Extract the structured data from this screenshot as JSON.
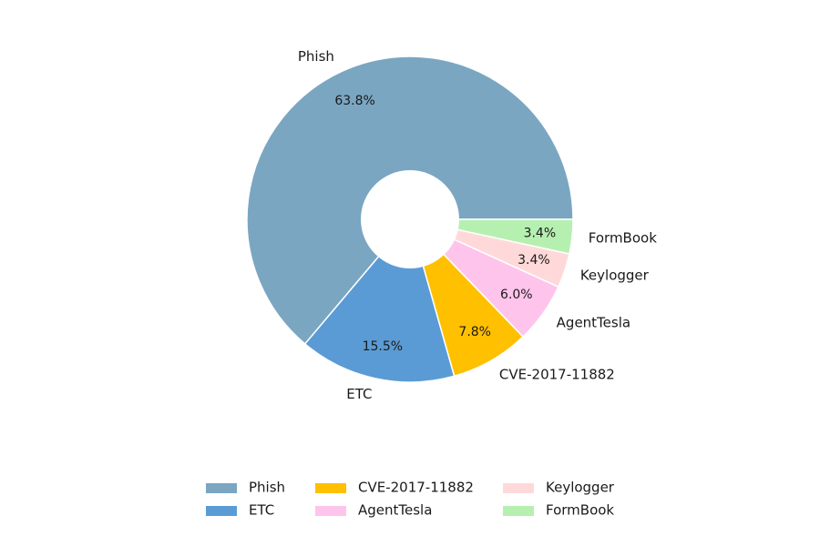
{
  "chart_data": {
    "type": "pie",
    "donut": true,
    "title": "",
    "categories": [
      "Phish",
      "ETC",
      "CVE-2017-11882",
      "AgentTesla",
      "Keylogger",
      "FormBook"
    ],
    "values": [
      63.8,
      15.5,
      7.8,
      6.0,
      3.4,
      3.4
    ],
    "value_labels": [
      "63.8%",
      "15.5%",
      "7.8%",
      "6.0%",
      "3.4%",
      "3.4%"
    ],
    "colors": [
      "#7aa6c2",
      "#5b9bd5",
      "#ffc000",
      "#ffc4ec",
      "#ffd9d9",
      "#b6f0b0"
    ],
    "legend": {
      "placement": "bottom-center",
      "columns": 3,
      "entries": [
        "Phish",
        "ETC",
        "CVE-2017-11882",
        "AgentTesla",
        "Keylogger",
        "FormBook"
      ]
    }
  }
}
